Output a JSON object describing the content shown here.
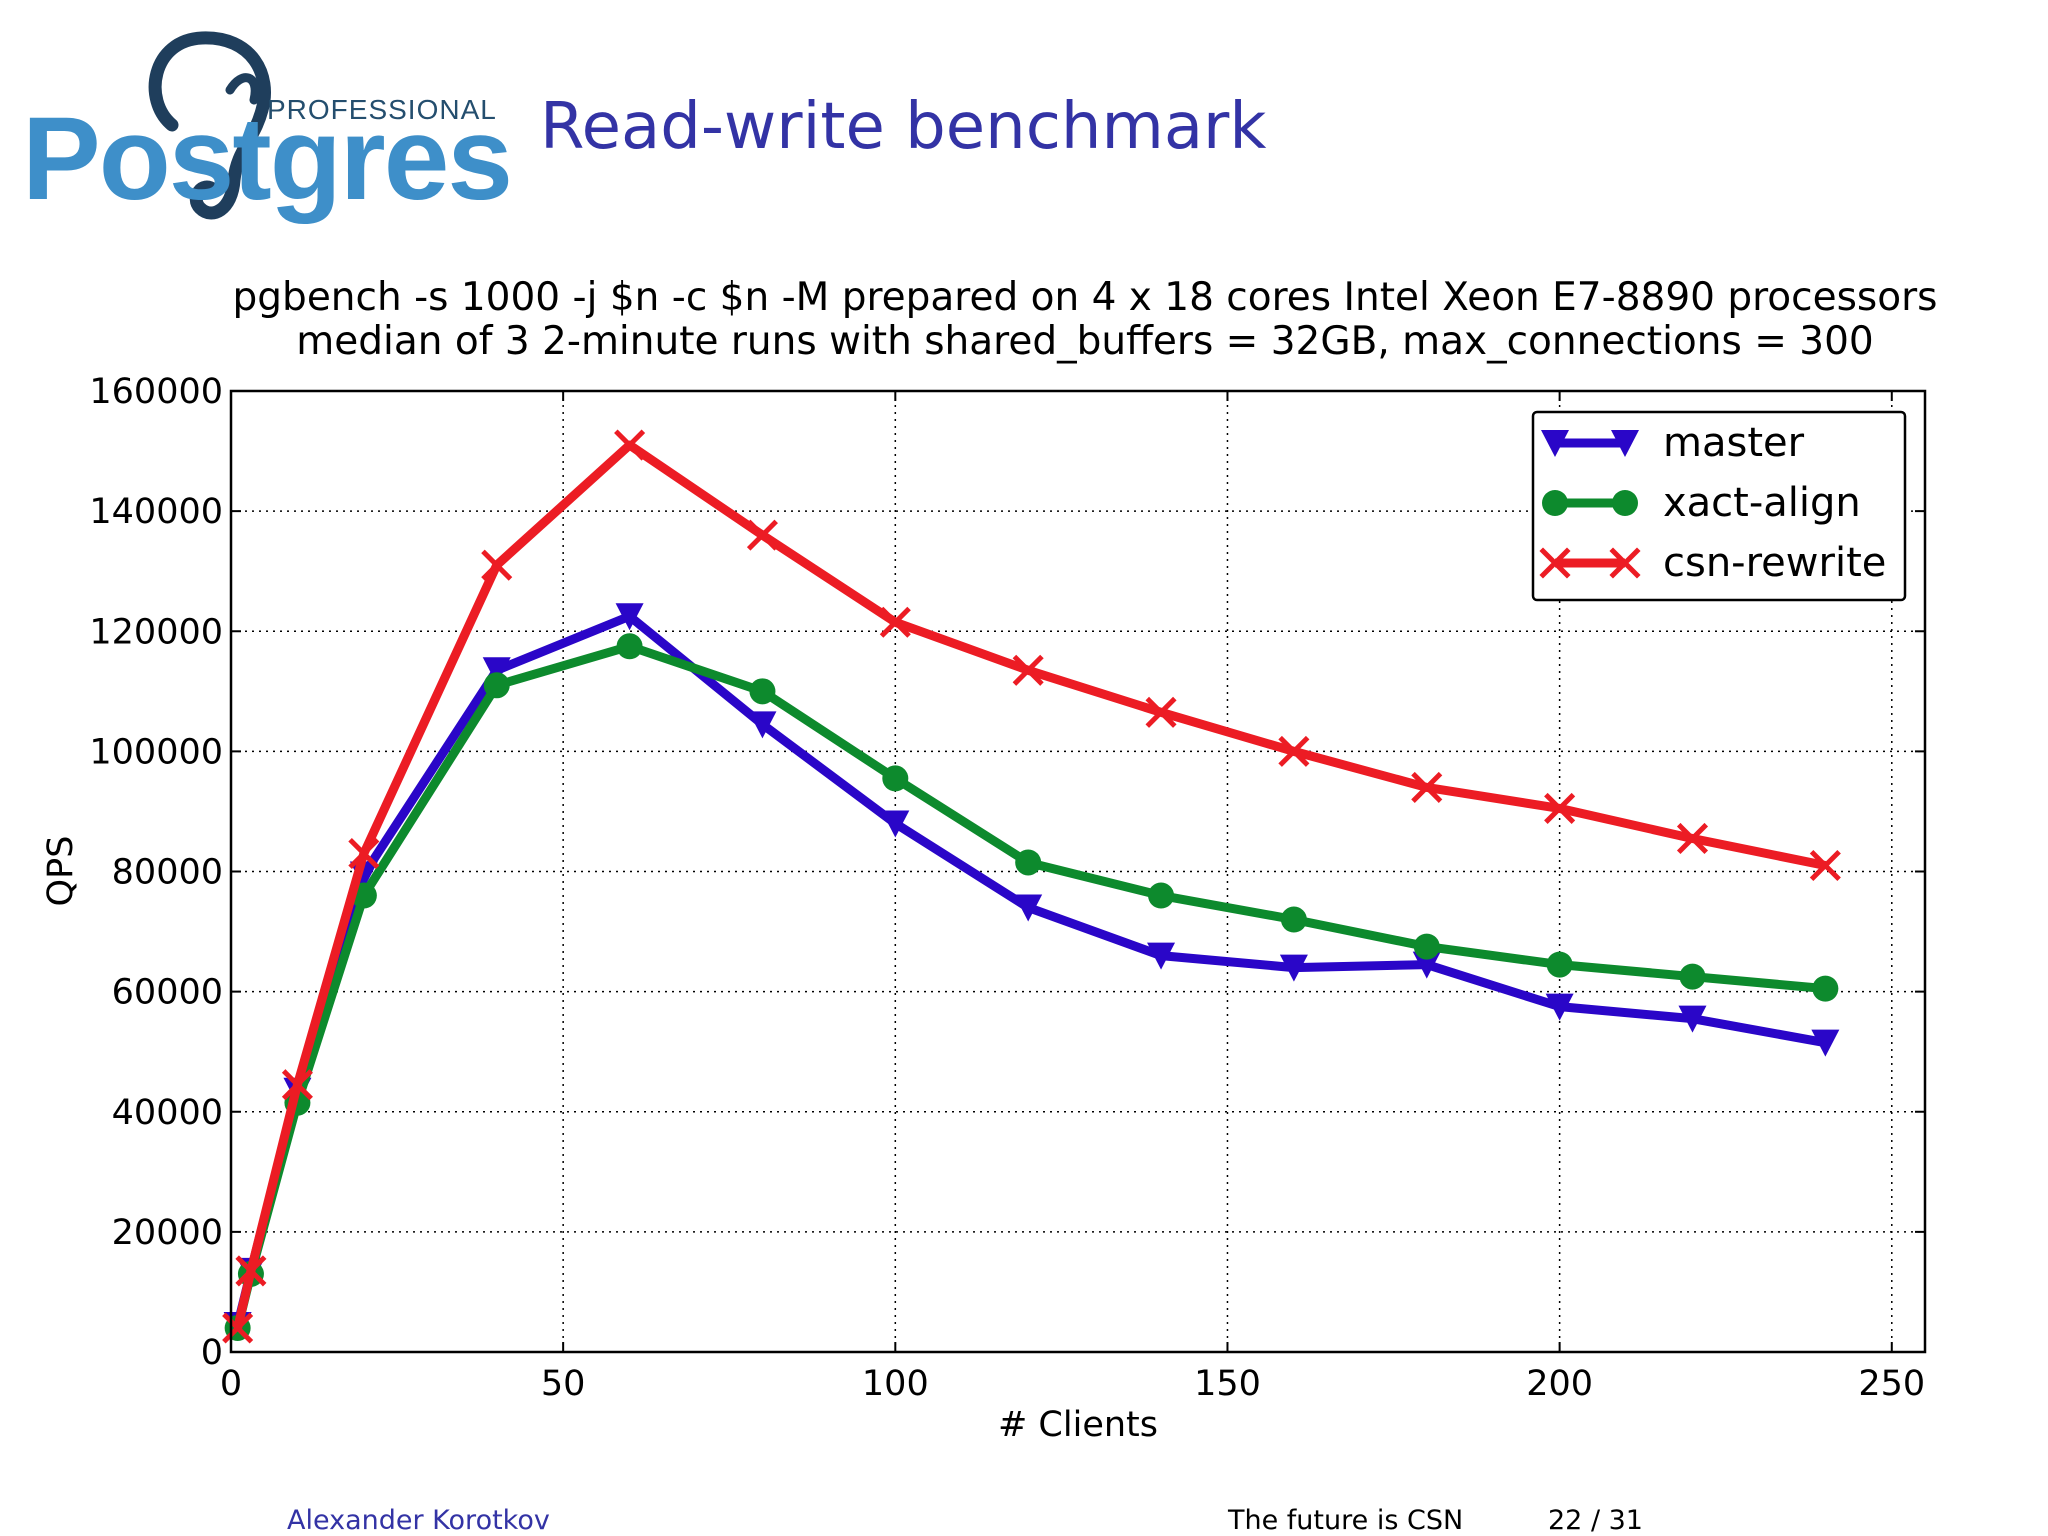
{
  "logo": {
    "word": "Postgres",
    "tagline": "PROFESSIONAL"
  },
  "slide": {
    "title": "Read-write benchmark"
  },
  "footer": {
    "author": "Alexander Korotkov",
    "talk": "The future is CSN",
    "page": "22 / 31"
  },
  "chart_data": {
    "type": "line",
    "title": "pgbench -s 1000 -j $n -c $n -M prepared on 4 x 18 cores Intel Xeon E7-8890 processors",
    "subtitle": "median of 3 2-minute runs with shared_buffers = 32GB, max_connections = 300",
    "xlabel": "# Clients",
    "ylabel": "QPS",
    "xlim": [
      0,
      255
    ],
    "ylim": [
      0,
      160000
    ],
    "xticks": [
      0,
      50,
      100,
      150,
      200,
      250
    ],
    "yticks": [
      0,
      20000,
      40000,
      60000,
      80000,
      100000,
      120000,
      140000,
      160000
    ],
    "grid": true,
    "legend_position": "top-right",
    "x": [
      1,
      3,
      10,
      20,
      40,
      60,
      80,
      100,
      120,
      140,
      160,
      180,
      200,
      220,
      240
    ],
    "series": [
      {
        "name": "master",
        "color": "#2a06c8",
        "marker": "triangle-down",
        "values": [
          4500,
          13500,
          43500,
          79500,
          113500,
          122500,
          104500,
          88000,
          74000,
          66000,
          64000,
          64500,
          57500,
          55500,
          51500
        ]
      },
      {
        "name": "xact-align",
        "color": "#0d8a2d",
        "marker": "circle",
        "values": [
          4000,
          13000,
          41500,
          76000,
          111000,
          117500,
          110000,
          95500,
          81500,
          76000,
          72000,
          67500,
          64500,
          62500,
          60500
        ]
      },
      {
        "name": "csn-rewrite",
        "color": "#ec1c24",
        "marker": "x",
        "values": [
          4000,
          13500,
          44500,
          83000,
          131000,
          151000,
          136000,
          121500,
          113500,
          106500,
          100000,
          94000,
          90500,
          85500,
          81000
        ]
      }
    ]
  }
}
